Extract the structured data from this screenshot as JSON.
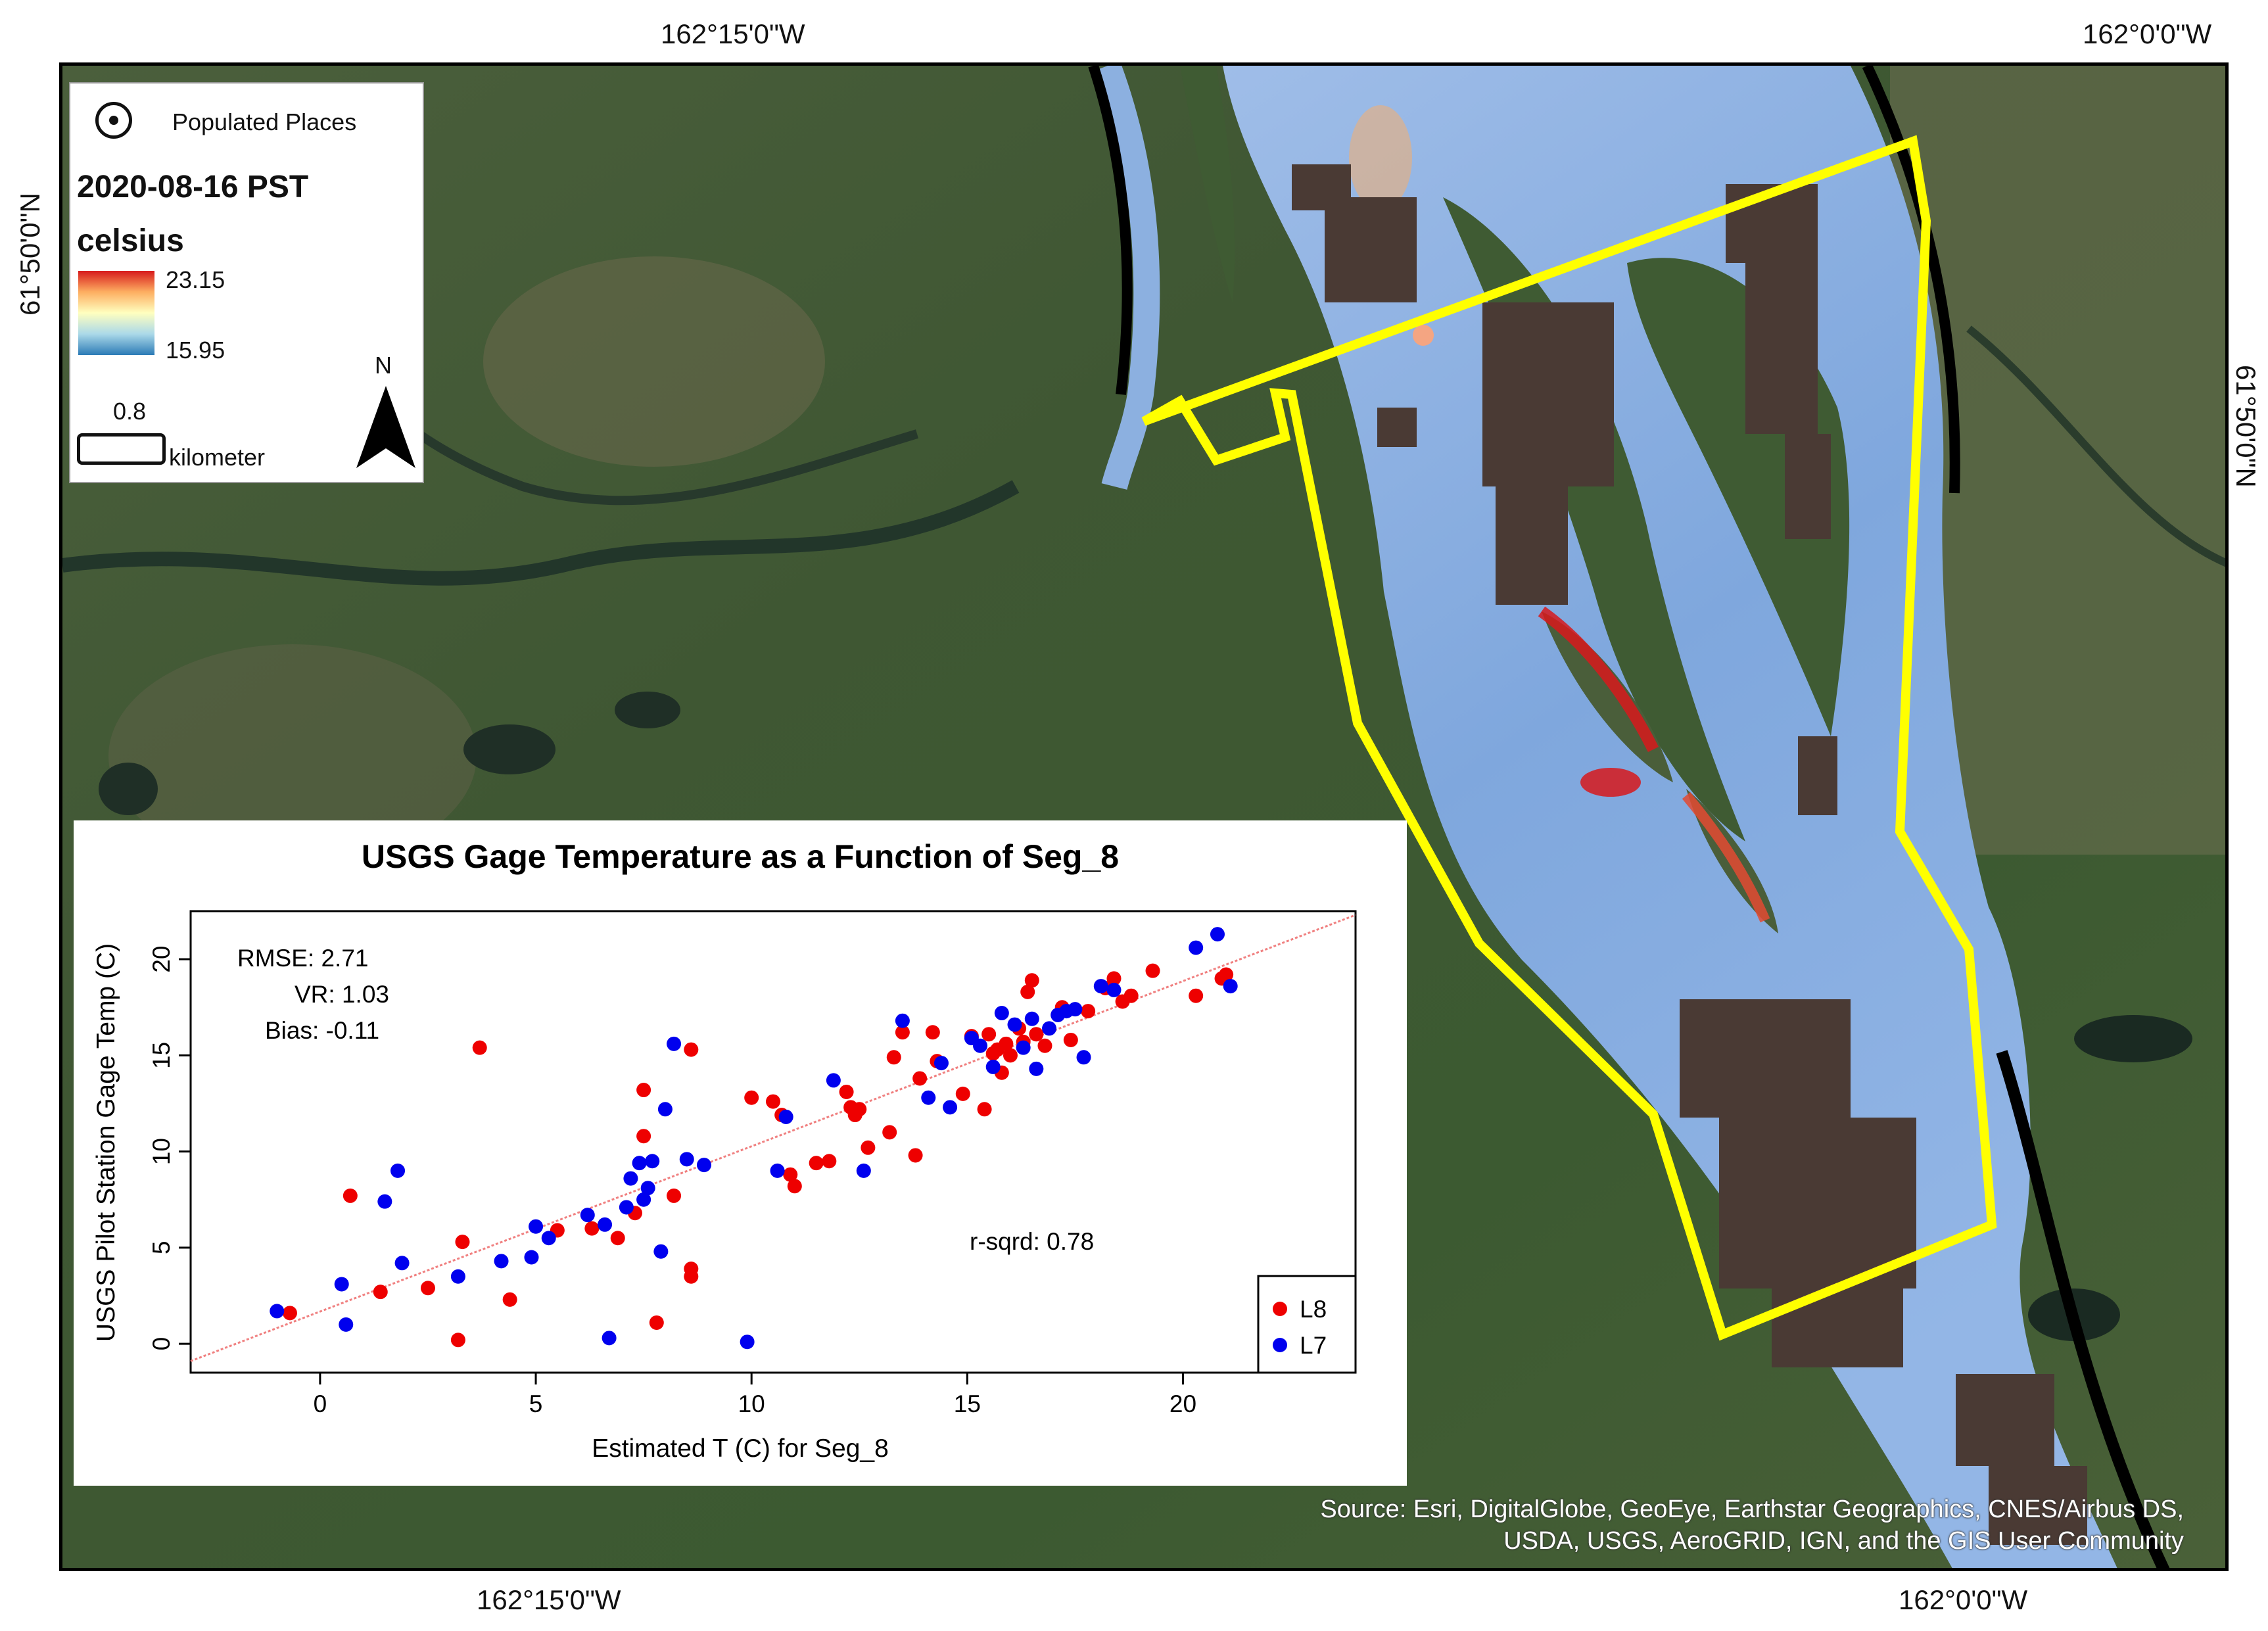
{
  "coords": {
    "top_left": "162°15'0\"W",
    "top_right": "162°0'0\"W",
    "bottom_left": "162°15'0\"W",
    "bottom_right": "162°0'0\"W",
    "left_vertical": "61°50'0\"N",
    "right_vertical": "61°50'0\"N"
  },
  "legend": {
    "populated_places": "Populated Places",
    "date": "2020-08-16 PST",
    "unit": "celsius",
    "max_value": "23.15",
    "min_value": "15.95",
    "ramp_colors": [
      "#d7191c",
      "#fdae61",
      "#ffffbf",
      "#abd9e9",
      "#2c7bb6"
    ],
    "scale_value": "0.8",
    "scale_unit": "kilometer",
    "north_label": "N"
  },
  "attribution": {
    "line1": "Source: Esri, DigitalGlobe, GeoEye, Earthstar Geographics, CNES/Airbus DS,",
    "line2": "USDA, USGS, AeroGRID, IGN, and the GIS User Community"
  },
  "colors": {
    "boundary": "#ffff00",
    "river": "#7fa7dd",
    "masked": "#4a3a34",
    "land": "#3e5a32"
  },
  "chart_data": {
    "type": "scatter",
    "title": "USGS Gage Temperature as a Function of Seg_8",
    "xlabel": "Estimated T (C) for Seg_8",
    "ylabel": "USGS Pilot Station Gage Temp (C)",
    "xlim": [
      -3,
      24
    ],
    "ylim": [
      -1.5,
      22.5
    ],
    "xticks": [
      0,
      5,
      10,
      15,
      20
    ],
    "yticks": [
      0,
      5,
      10,
      15,
      20
    ],
    "stats": {
      "rmse": "RMSE: 2.71",
      "vr": "VR: 1.03",
      "bias": "Bias: -0.11",
      "rsq": "r-sqrd: 0.78"
    },
    "fit_line": {
      "x": [
        -3,
        24
      ],
      "y": [
        -0.9,
        22.3
      ],
      "color": "#f08080"
    },
    "legend_position": "bottom-right",
    "series": [
      {
        "name": "L8",
        "color": "#ee0000",
        "points": [
          [
            -0.7,
            1.6
          ],
          [
            0.7,
            7.7
          ],
          [
            1.4,
            2.7
          ],
          [
            2.5,
            2.9
          ],
          [
            3.2,
            0.2
          ],
          [
            3.3,
            5.3
          ],
          [
            3.7,
            15.4
          ],
          [
            4.4,
            2.3
          ],
          [
            5.5,
            5.9
          ],
          [
            6.3,
            6.0
          ],
          [
            6.9,
            5.5
          ],
          [
            7.3,
            6.8
          ],
          [
            7.5,
            10.8
          ],
          [
            7.5,
            13.2
          ],
          [
            7.8,
            1.1
          ],
          [
            8.2,
            7.7
          ],
          [
            8.6,
            15.3
          ],
          [
            8.6,
            3.9
          ],
          [
            8.6,
            3.5
          ],
          [
            10.0,
            12.8
          ],
          [
            10.5,
            12.6
          ],
          [
            10.7,
            11.9
          ],
          [
            10.9,
            8.8
          ],
          [
            11.0,
            8.2
          ],
          [
            11.5,
            9.4
          ],
          [
            11.8,
            9.5
          ],
          [
            12.2,
            13.1
          ],
          [
            12.3,
            12.3
          ],
          [
            12.4,
            11.9
          ],
          [
            12.5,
            12.2
          ],
          [
            12.7,
            10.2
          ],
          [
            13.2,
            11.0
          ],
          [
            13.3,
            14.9
          ],
          [
            13.5,
            16.2
          ],
          [
            13.8,
            9.8
          ],
          [
            13.9,
            13.8
          ],
          [
            14.2,
            16.2
          ],
          [
            14.3,
            14.7
          ],
          [
            14.9,
            13.0
          ],
          [
            15.1,
            16.0
          ],
          [
            15.4,
            12.2
          ],
          [
            15.5,
            16.1
          ],
          [
            15.6,
            15.1
          ],
          [
            15.7,
            15.3
          ],
          [
            15.8,
            14.1
          ],
          [
            15.9,
            15.6
          ],
          [
            16.0,
            15.0
          ],
          [
            16.2,
            16.4
          ],
          [
            16.3,
            15.7
          ],
          [
            16.4,
            18.3
          ],
          [
            16.5,
            18.9
          ],
          [
            16.6,
            16.1
          ],
          [
            16.8,
            15.5
          ],
          [
            17.2,
            17.5
          ],
          [
            17.4,
            15.8
          ],
          [
            17.8,
            17.3
          ],
          [
            18.2,
            18.5
          ],
          [
            18.4,
            19.0
          ],
          [
            18.6,
            17.8
          ],
          [
            18.8,
            18.1
          ],
          [
            19.3,
            19.4
          ],
          [
            20.3,
            18.1
          ],
          [
            20.9,
            19.0
          ],
          [
            21.0,
            19.2
          ]
        ]
      },
      {
        "name": "L7",
        "color": "#0000ee",
        "points": [
          [
            -1.0,
            1.7
          ],
          [
            0.5,
            3.1
          ],
          [
            0.6,
            1.0
          ],
          [
            1.5,
            7.4
          ],
          [
            1.8,
            9.0
          ],
          [
            1.9,
            4.2
          ],
          [
            3.2,
            3.5
          ],
          [
            4.2,
            4.3
          ],
          [
            4.9,
            4.5
          ],
          [
            5.0,
            6.1
          ],
          [
            5.3,
            5.5
          ],
          [
            6.2,
            6.7
          ],
          [
            6.6,
            6.2
          ],
          [
            6.7,
            0.3
          ],
          [
            7.1,
            7.1
          ],
          [
            7.2,
            8.6
          ],
          [
            7.4,
            9.4
          ],
          [
            7.5,
            7.5
          ],
          [
            7.6,
            8.1
          ],
          [
            7.7,
            9.5
          ],
          [
            7.9,
            4.8
          ],
          [
            8.0,
            12.2
          ],
          [
            8.2,
            15.6
          ],
          [
            8.5,
            9.6
          ],
          [
            8.9,
            9.3
          ],
          [
            9.9,
            0.1
          ],
          [
            10.6,
            9.0
          ],
          [
            10.8,
            11.8
          ],
          [
            11.9,
            13.7
          ],
          [
            12.6,
            9.0
          ],
          [
            13.5,
            16.8
          ],
          [
            14.1,
            12.8
          ],
          [
            14.4,
            14.6
          ],
          [
            14.6,
            12.3
          ],
          [
            15.1,
            15.9
          ],
          [
            15.3,
            15.5
          ],
          [
            15.6,
            14.4
          ],
          [
            15.8,
            17.2
          ],
          [
            16.1,
            16.6
          ],
          [
            16.3,
            15.4
          ],
          [
            16.5,
            16.9
          ],
          [
            16.6,
            14.3
          ],
          [
            16.9,
            16.4
          ],
          [
            17.1,
            17.1
          ],
          [
            17.3,
            17.3
          ],
          [
            17.5,
            17.4
          ],
          [
            17.7,
            14.9
          ],
          [
            18.1,
            18.6
          ],
          [
            18.4,
            18.4
          ],
          [
            20.3,
            20.6
          ],
          [
            20.8,
            21.3
          ],
          [
            21.1,
            18.6
          ]
        ]
      }
    ]
  }
}
